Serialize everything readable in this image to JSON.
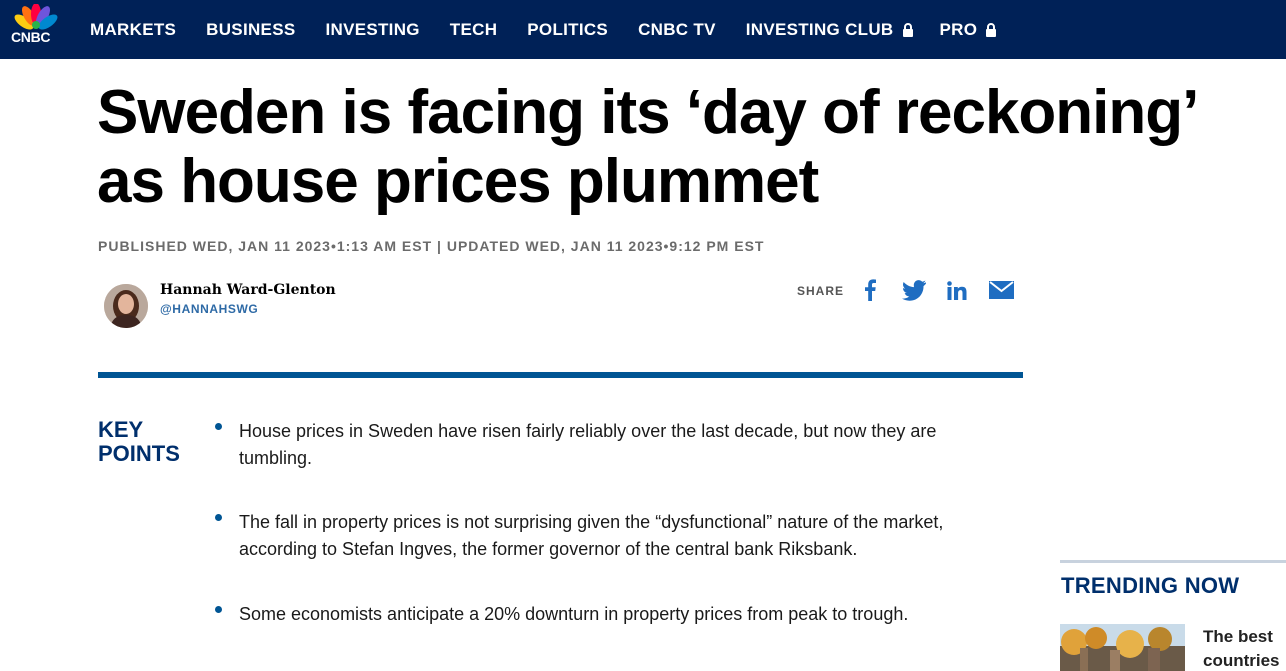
{
  "nav": {
    "logo_text": "CNBC",
    "items": [
      "MARKETS",
      "BUSINESS",
      "INVESTING",
      "TECH",
      "POLITICS",
      "CNBC TV",
      "INVESTING CLUB",
      "PRO"
    ]
  },
  "article": {
    "headline_line1": "Sweden is facing its ‘day of reckoning’",
    "headline_line2": "as house prices plummet",
    "dateline": "PUBLISHED WED, JAN 11 2023•1:13 AM EST | UPDATED WED, JAN 11 2023•9:12 PM EST",
    "author": {
      "name": "Hannah Ward-Glenton",
      "handle": "@HANNAHSWG"
    },
    "share": {
      "label": "SHARE",
      "icons": [
        "facebook-icon",
        "twitter-icon",
        "linkedin-icon",
        "email-icon"
      ]
    },
    "key_points": {
      "label_line1": "KEY",
      "label_line2": "POINTS",
      "items": [
        "House prices in Sweden have risen fairly reliably over the last decade, but now they are tumbling.",
        "The fall in property prices is not surprising given the “dysfunctional” nature of the market, according to Stefan Ingves, the former governor of the central bank Riksbank.",
        "Some economists anticipate a 20% downturn in property prices from peak to trough."
      ]
    }
  },
  "trending": {
    "title": "TRENDING NOW",
    "first_item_text_line1": "The best",
    "first_item_text_line2": "countries"
  },
  "colors": {
    "nav_bg": "#002157",
    "accent_blue": "#005594",
    "kp_label": "#002f6c",
    "handle": "#2e6aa6"
  }
}
